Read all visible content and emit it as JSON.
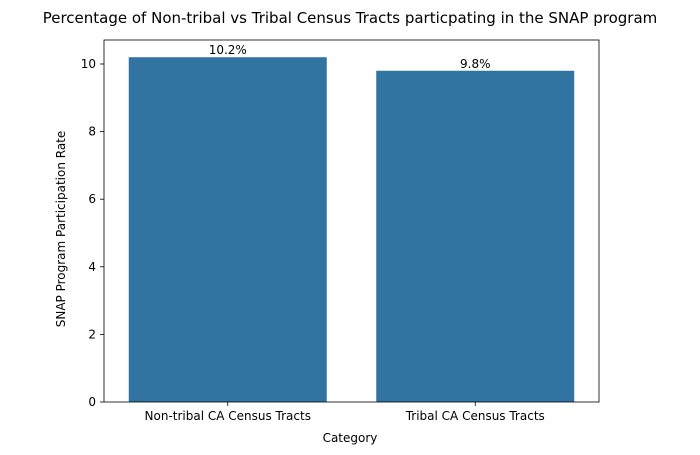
{
  "chart_data": {
    "type": "bar",
    "title": "Percentage of Non-tribal vs Tribal Census Tracts particpating in the SNAP program",
    "xlabel": "Category",
    "ylabel": "SNAP Program Participation Rate",
    "categories": [
      "Non-tribal CA Census Tracts",
      "Tribal CA Census Tracts"
    ],
    "values": [
      10.2,
      9.8
    ],
    "data_labels": [
      "10.2%",
      "9.8%"
    ],
    "ylim": [
      0,
      10.71
    ],
    "yticks": [
      0,
      2,
      4,
      6,
      8,
      10
    ],
    "ytick_labels": [
      "0",
      "2",
      "4",
      "6",
      "8",
      "10"
    ],
    "bar_color": "#3274a1",
    "grid": false,
    "legend": "none"
  }
}
